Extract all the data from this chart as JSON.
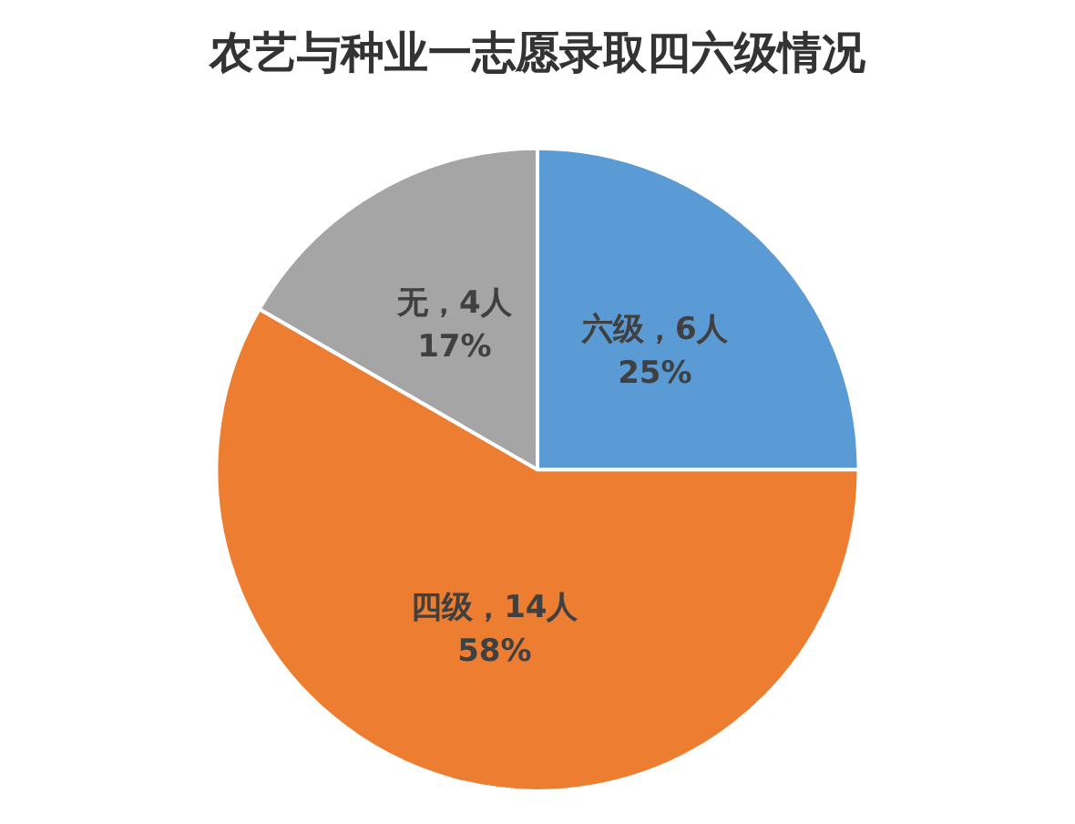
{
  "chart_data": {
    "type": "pie",
    "title": "农艺与种业一志愿录取四六级情况",
    "categories": [
      "六级",
      "四级",
      "无"
    ],
    "values": [
      6,
      14,
      4
    ],
    "colors": [
      "#5b9bd5",
      "#ed7d31",
      "#a5a5a5"
    ],
    "value_labels": [
      "，6人\n25%",
      "，14人\n58%",
      "，4人\n17%"
    ],
    "legend": false
  }
}
